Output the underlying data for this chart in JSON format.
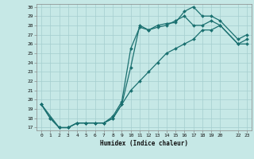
{
  "xlabel": "Humidex (Indice chaleur)",
  "ylabel": "",
  "background_color": "#c6e8e6",
  "grid_color": "#a4cece",
  "line_color": "#1a7070",
  "ylim": [
    16.7,
    30.3
  ],
  "xlim": [
    -0.5,
    23.5
  ],
  "yticks": [
    17,
    18,
    19,
    20,
    21,
    22,
    23,
    24,
    25,
    26,
    27,
    28,
    29,
    30
  ],
  "xticks": [
    0,
    1,
    2,
    3,
    4,
    5,
    6,
    7,
    8,
    9,
    10,
    11,
    12,
    13,
    14,
    15,
    16,
    17,
    18,
    19,
    20,
    22,
    23
  ],
  "line1_x": [
    0,
    1,
    2,
    3,
    4,
    5,
    6,
    7,
    8,
    9,
    10,
    11,
    12,
    13,
    14,
    15,
    16,
    17,
    18,
    19,
    20,
    22,
    23
  ],
  "line1_y": [
    19.5,
    18.0,
    17.0,
    17.0,
    17.5,
    17.5,
    17.5,
    17.5,
    18.0,
    19.5,
    23.5,
    28.0,
    27.5,
    28.0,
    28.2,
    28.3,
    29.5,
    30.0,
    29.0,
    29.0,
    28.5,
    26.5,
    27.0
  ],
  "line2_x": [
    0,
    1,
    2,
    3,
    4,
    5,
    6,
    7,
    8,
    9,
    10,
    11,
    12,
    13,
    14,
    15,
    16,
    17,
    18,
    19,
    20,
    22,
    23
  ],
  "line2_y": [
    19.5,
    18.0,
    17.0,
    17.0,
    17.5,
    17.5,
    17.5,
    17.5,
    18.2,
    19.8,
    25.5,
    27.8,
    27.5,
    27.8,
    28.0,
    28.5,
    29.0,
    28.0,
    28.0,
    28.5,
    28.0,
    26.0,
    26.5
  ],
  "line3_x": [
    0,
    2,
    3,
    4,
    5,
    6,
    7,
    8,
    9,
    10,
    11,
    12,
    13,
    14,
    15,
    16,
    17,
    18,
    19,
    20,
    22,
    23
  ],
  "line3_y": [
    19.5,
    17.0,
    17.0,
    17.5,
    17.5,
    17.5,
    17.5,
    18.0,
    19.5,
    21.0,
    22.0,
    23.0,
    24.0,
    25.0,
    25.5,
    26.0,
    26.5,
    27.5,
    27.5,
    28.0,
    26.0,
    26.0
  ]
}
